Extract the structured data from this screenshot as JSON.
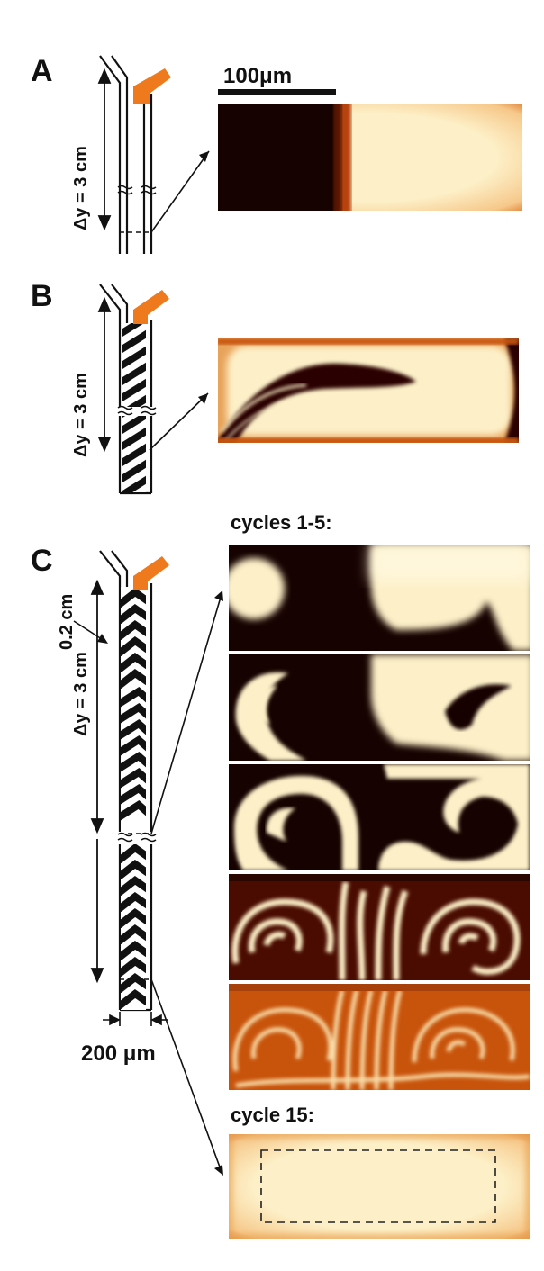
{
  "figure": {
    "panels": [
      {
        "letter": "A",
        "delta_y_label": "Δy = 3 cm",
        "scale_bar_label": "100μm"
      },
      {
        "letter": "B",
        "delta_y_label": "Δy = 3 cm"
      },
      {
        "letter": "C",
        "delta_y_label": "Δy = 3 cm",
        "short_length_label": "0.2 cm",
        "width_label": "200 μm",
        "cycles_early_label": "cycles 1-5:",
        "cycle_late_label": "cycle 15:"
      }
    ],
    "colors": {
      "dark": "#160200",
      "mid": "#c8540c",
      "light": "#fdf0c8",
      "accent_inlet": "#ef7a1e",
      "line": "#111111"
    }
  }
}
